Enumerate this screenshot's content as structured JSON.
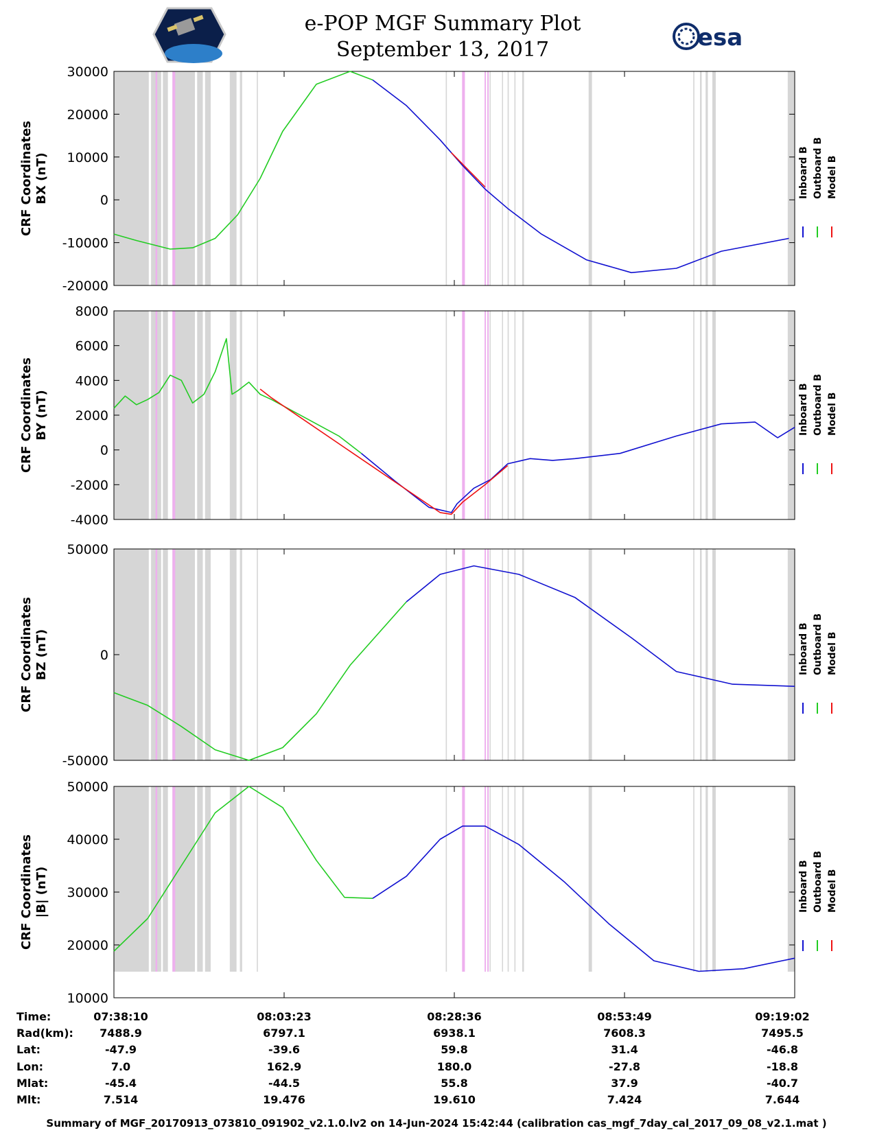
{
  "header": {
    "title": "e-POP MGF Summary Plot",
    "date": "September 13, 2017",
    "esa_logo_text": "esa"
  },
  "colors": {
    "inboard": "#1010d0",
    "outboard": "#22cc22",
    "model": "#ee1111",
    "gap_shade": "#d6d6d6",
    "event_shade": "#eeb0ee"
  },
  "legend": [
    "Inboard B",
    "Outboard B",
    "Model B"
  ],
  "chart_data": [
    {
      "type": "line",
      "ylabel_line1": "CRF Coordinates",
      "ylabel_line2": "BX (nT)",
      "ylim": [
        -20000,
        30000
      ],
      "yticks": [
        30000,
        20000,
        10000,
        0,
        -10000,
        -20000
      ],
      "ytick_labels": [
        "30000",
        "20000",
        "10000",
        "0",
        "-10000",
        "-20000"
      ],
      "x_range_s": [
        0,
        6052
      ],
      "series": [
        {
          "name": "Outboard B",
          "x": [
            0,
            200,
            500,
            700,
            900,
            1100,
            1300,
            1500,
            1800,
            2100,
            2300
          ],
          "y": [
            -8000,
            -9500,
            -11500,
            -11200,
            -9000,
            -3500,
            5000,
            16000,
            27000,
            30000,
            28000
          ]
        },
        {
          "name": "Inboard B",
          "x": [
            2300,
            2600,
            2900,
            3100,
            3300,
            3500,
            3800,
            4200,
            4600,
            5000,
            5400,
            6000
          ],
          "y": [
            28000,
            22000,
            14000,
            8000,
            2500,
            -2000,
            -8000,
            -14000,
            -17000,
            -16000,
            -12000,
            -9000
          ]
        },
        {
          "name": "Model B",
          "x": [
            3000,
            3150,
            3300
          ],
          "y": [
            11000,
            7000,
            3000
          ]
        }
      ]
    },
    {
      "type": "line",
      "ylabel_line1": "CRF Coordinates",
      "ylabel_line2": "BY (nT)",
      "ylim": [
        -4000,
        8000
      ],
      "yticks": [
        8000,
        6000,
        4000,
        2000,
        0,
        -2000,
        -4000
      ],
      "ytick_labels": [
        "8000",
        "6000",
        "4000",
        "2000",
        "0",
        "-2000",
        "-4000"
      ],
      "x_range_s": [
        0,
        6052
      ],
      "series": [
        {
          "name": "Outboard B",
          "x": [
            0,
            100,
            200,
            300,
            400,
            500,
            600,
            700,
            800,
            900,
            1000,
            1050,
            1100,
            1200,
            1300,
            1400,
            1600,
            2000,
            2200
          ],
          "y": [
            2400,
            3100,
            2600,
            2900,
            3300,
            4300,
            4000,
            2700,
            3200,
            4500,
            6400,
            3200,
            3400,
            3900,
            3200,
            2900,
            2200,
            800,
            -200
          ]
        },
        {
          "name": "Inboard B",
          "x": [
            2200,
            2500,
            2800,
            3000,
            3050,
            3200,
            3350,
            3500,
            3700,
            3900,
            4100,
            4500,
            5000,
            5400,
            5700,
            5900,
            6052
          ],
          "y": [
            -200,
            -1800,
            -3300,
            -3600,
            -3100,
            -2200,
            -1700,
            -800,
            -500,
            -600,
            -500,
            -200,
            800,
            1500,
            1600,
            700,
            1300
          ]
        },
        {
          "name": "Model B",
          "x": [
            1300,
            1400,
            2900,
            3000,
            3100,
            3300,
            3500
          ],
          "y": [
            3500,
            3000,
            -3600,
            -3700,
            -3000,
            -2000,
            -900
          ]
        }
      ]
    },
    {
      "type": "line",
      "ylabel_line1": "CRF Coordinates",
      "ylabel_line2": "BZ (nT)",
      "ylim": [
        -50000,
        50000
      ],
      "yticks": [
        50000,
        0,
        -50000
      ],
      "ytick_labels": [
        "50000",
        "0",
        "-50000"
      ],
      "x_range_s": [
        0,
        6052
      ],
      "series": [
        {
          "name": "Outboard B",
          "x": [
            0,
            300,
            600,
            900,
            1200,
            1500,
            1800,
            2100,
            2600
          ],
          "y": [
            -18000,
            -24000,
            -34000,
            -45000,
            -50000,
            -44000,
            -28000,
            -5000,
            25000
          ]
        },
        {
          "name": "Inboard B",
          "x": [
            2600,
            2900,
            3200,
            3600,
            4100,
            4600,
            5000,
            5500,
            6052
          ],
          "y": [
            25000,
            38000,
            42000,
            38000,
            27000,
            8000,
            -8000,
            -14000,
            -15000
          ]
        }
      ]
    },
    {
      "type": "line",
      "ylabel_line1": "CRF Coordinates",
      "ylabel_line2": "|B| (nT)",
      "ylim": [
        10000,
        50000
      ],
      "yticks": [
        50000,
        40000,
        30000,
        20000,
        10000
      ],
      "ytick_labels": [
        "50000",
        "40000",
        "30000",
        "20000",
        "10000"
      ],
      "x_range_s": [
        0,
        6052
      ],
      "series": [
        {
          "name": "Outboard B",
          "x": [
            0,
            300,
            600,
            900,
            1200,
            1500,
            1800,
            2050,
            2300
          ],
          "y": [
            18800,
            25000,
            35000,
            45000,
            50000,
            46000,
            36000,
            29000,
            28800
          ]
        },
        {
          "name": "Inboard B",
          "x": [
            2300,
            2600,
            2900,
            3100,
            3300,
            3600,
            4000,
            4400,
            4800,
            5200,
            5600,
            6052
          ],
          "y": [
            28800,
            33000,
            40000,
            42500,
            42500,
            39000,
            32000,
            24000,
            17000,
            15000,
            15500,
            17500
          ]
        }
      ]
    }
  ],
  "shading": {
    "gray_bands_s": [
      [
        0,
        310
      ],
      [
        330,
        420
      ],
      [
        435,
        480
      ],
      [
        520,
        720
      ],
      [
        740,
        790
      ],
      [
        810,
        860
      ],
      [
        1030,
        1090
      ],
      [
        1120,
        1140
      ],
      [
        1270,
        1280
      ],
      [
        2950,
        2960
      ],
      [
        3320,
        3325
      ],
      [
        3340,
        3345
      ],
      [
        3450,
        3455
      ],
      [
        3500,
        3510
      ],
      [
        3560,
        3570
      ],
      [
        3630,
        3645
      ],
      [
        4220,
        4250
      ],
      [
        5150,
        5160
      ],
      [
        5210,
        5225
      ],
      [
        5260,
        5280
      ],
      [
        5320,
        5350
      ],
      [
        5990,
        6052
      ]
    ],
    "magenta_bands_s": [
      [
        370,
        385
      ],
      [
        520,
        545
      ],
      [
        3095,
        3120
      ],
      [
        3295,
        3305
      ],
      [
        3320,
        3330
      ]
    ]
  },
  "info_table": {
    "row_labels": [
      "Time:",
      "Rad(km):",
      "Lat:",
      "Lon:",
      "Mlat:",
      "Mlt:"
    ],
    "columns": [
      [
        "07:38:10",
        "7488.9",
        "-47.9",
        "7.0",
        "-45.4",
        "7.514"
      ],
      [
        "08:03:23",
        "6797.1",
        "-39.6",
        "162.9",
        "-44.5",
        "19.476"
      ],
      [
        "08:28:36",
        "6938.1",
        "59.8",
        "180.0",
        "55.8",
        "19.610"
      ],
      [
        "08:53:49",
        "7608.3",
        "31.4",
        "-27.8",
        "37.9",
        "7.424"
      ],
      [
        "09:19:02",
        "7495.5",
        "-46.8",
        "-18.8",
        "-40.7",
        "7.644"
      ]
    ]
  },
  "footer": "Summary of MGF_20170913_073810_091902_v2.1.0.lv2 on 14-Jun-2024 15:42:44 (calibration cas_mgf_7day_cal_2017_09_08_v2.1.mat )"
}
